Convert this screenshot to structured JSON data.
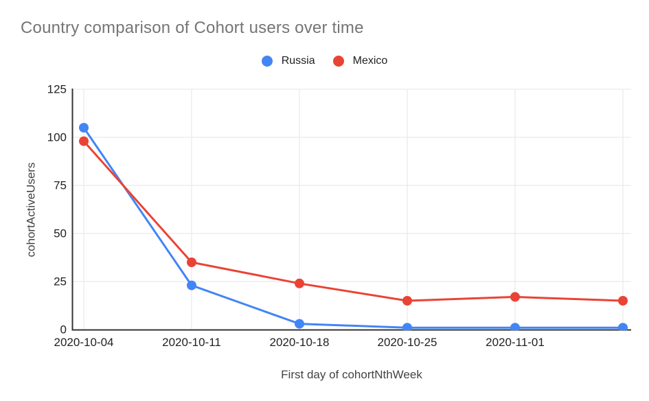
{
  "chart_data": {
    "type": "line",
    "title": "Country comparison of Cohort users over time",
    "xlabel": "First day of cohortNthWeek",
    "ylabel": "cohortActiveUsers",
    "categories": [
      "2020-10-04",
      "2020-10-11",
      "2020-10-18",
      "2020-10-25",
      "2020-11-01",
      ""
    ],
    "series": [
      {
        "name": "Russia",
        "color": "#4285F4",
        "values": [
          105,
          23,
          3,
          1,
          1,
          1
        ]
      },
      {
        "name": "Mexico",
        "color": "#EA4335",
        "values": [
          98,
          35,
          24,
          15,
          17,
          15
        ]
      }
    ],
    "y_ticks": [
      0,
      25,
      50,
      75,
      100,
      125
    ],
    "ylim": [
      0,
      125
    ],
    "grid": true,
    "legend_position": "top",
    "colors": {
      "grid": "#e6e6e6",
      "axis": "#333333",
      "tick_label": "#212121",
      "title": "#757575"
    }
  }
}
